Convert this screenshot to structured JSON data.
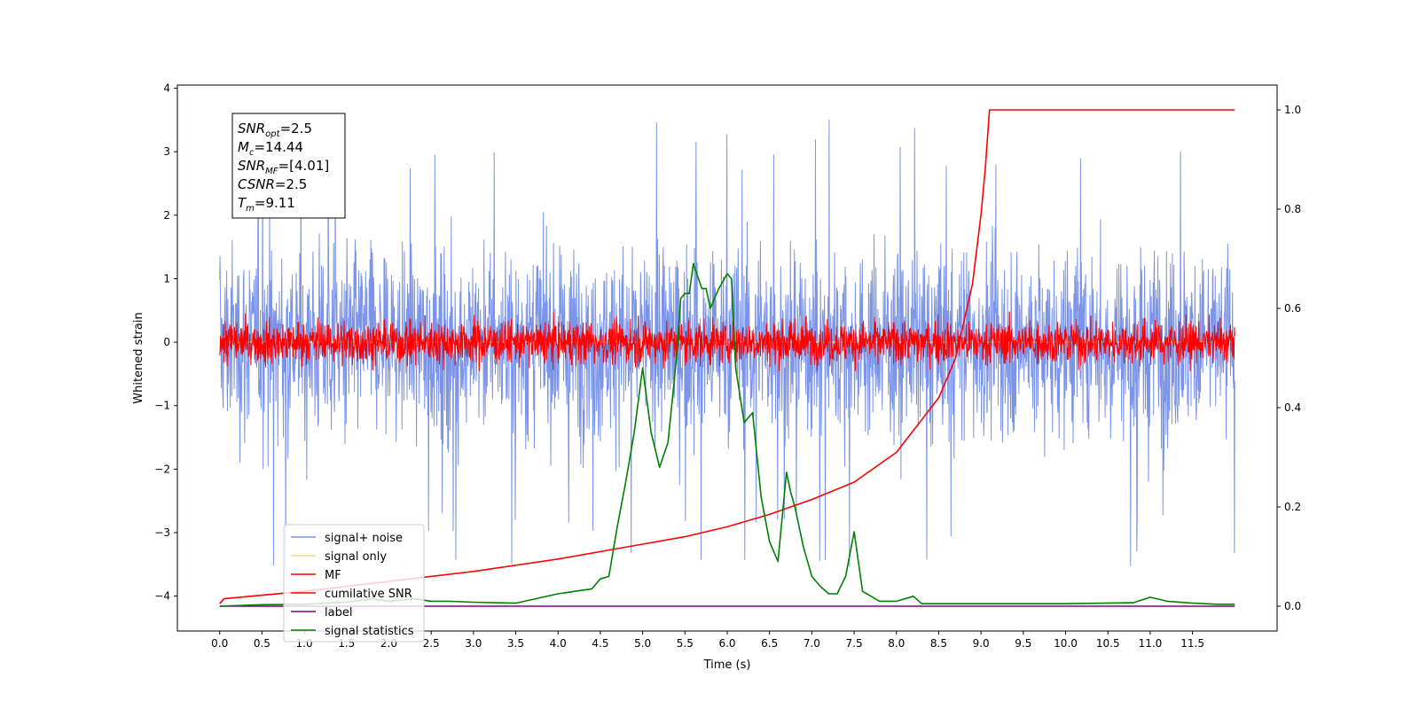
{
  "chart_data": {
    "type": "line",
    "xlabel": "Time (s)",
    "ylabel": "Whitened strain",
    "xlim": [
      -0.5,
      12.5
    ],
    "ylim": [
      -4.55,
      4.05
    ],
    "y2lim": [
      -0.05,
      1.05
    ],
    "grid": false,
    "legend_position": "lower-left",
    "x_ticks": [
      "0.0",
      "0.5",
      "1.0",
      "1.5",
      "2.0",
      "2.5",
      "3.0",
      "3.5",
      "4.0",
      "4.5",
      "5.0",
      "5.5",
      "6.0",
      "6.5",
      "7.0",
      "7.5",
      "8.0",
      "8.5",
      "9.0",
      "9.5",
      "10.0",
      "10.5",
      "11.0",
      "11.5"
    ],
    "y_ticks": [
      "4",
      "3",
      "2",
      "1",
      "0",
      "−1",
      "−2",
      "−3",
      "−4"
    ],
    "y2_ticks": [
      "1.0",
      "0.8",
      "0.6",
      "0.4",
      "0.2",
      "0.0"
    ],
    "annotation": {
      "lines": [
        {
          "base": "SNR",
          "sub": "opt",
          "value": "=2.5"
        },
        {
          "base": "M",
          "sub": "c",
          "value": "=14.44"
        },
        {
          "base": "SNR",
          "sub": "MF",
          "value": "=[4.01]"
        },
        {
          "base": "CSNR",
          "sub": "",
          "value": "=2.5"
        },
        {
          "base": "T",
          "sub": "m",
          "value": "=9.11"
        }
      ]
    },
    "legend": [
      {
        "label": "signal+ noise",
        "color": "#7b94e8"
      },
      {
        "label": "signal only",
        "color": "#ffd27f"
      },
      {
        "label": "MF",
        "color": "#ff0000"
      },
      {
        "label": "cumilative SNR",
        "color": "#ff0000"
      },
      {
        "label": "label",
        "color": "#800080"
      },
      {
        "label": "signal statistics",
        "color": "#008000"
      }
    ],
    "series": [
      {
        "name": "signal+ noise",
        "axis": "left",
        "color": "#7b94e8",
        "noise_amplitude": 1.35,
        "x_range": [
          0,
          12.0
        ]
      },
      {
        "name": "signal only",
        "axis": "left",
        "color": "#ffd27f",
        "x": [
          0,
          12.0
        ],
        "y": [
          0,
          0
        ]
      },
      {
        "name": "MF",
        "axis": "left",
        "color": "#ff0000",
        "noise_amplitude": 0.3,
        "x_range": [
          0,
          12.0
        ]
      },
      {
        "name": "cumilative SNR",
        "axis": "right",
        "color": "#ff0000",
        "x": [
          0.0,
          0.05,
          1.0,
          2.0,
          3.0,
          4.0,
          5.0,
          5.5,
          6.0,
          6.5,
          7.0,
          7.5,
          8.0,
          8.5,
          8.7,
          8.9,
          9.0,
          9.05,
          9.1,
          12.0
        ],
        "y": [
          0.005,
          0.015,
          0.03,
          0.05,
          0.07,
          0.095,
          0.125,
          0.14,
          0.16,
          0.185,
          0.215,
          0.25,
          0.31,
          0.42,
          0.5,
          0.65,
          0.79,
          0.88,
          1.0,
          1.0
        ]
      },
      {
        "name": "label",
        "axis": "right",
        "color": "#800080",
        "x": [
          0,
          12.0
        ],
        "y": [
          0,
          0
        ]
      },
      {
        "name": "signal statistics",
        "axis": "right",
        "color": "#008000",
        "x": [
          0.0,
          0.5,
          1.0,
          1.5,
          1.8,
          2.0,
          2.3,
          2.5,
          2.7,
          3.0,
          3.5,
          4.0,
          4.2,
          4.4,
          4.5,
          4.6,
          4.7,
          4.8,
          4.9,
          5.0,
          5.1,
          5.2,
          5.3,
          5.4,
          5.45,
          5.5,
          5.55,
          5.6,
          5.7,
          5.75,
          5.8,
          5.9,
          6.0,
          6.05,
          6.1,
          6.2,
          6.3,
          6.4,
          6.5,
          6.6,
          6.7,
          6.75,
          6.8,
          6.9,
          7.0,
          7.1,
          7.2,
          7.3,
          7.4,
          7.5,
          7.6,
          7.8,
          8.0,
          8.2,
          8.3,
          8.5,
          9.0,
          10.0,
          10.8,
          11.0,
          11.2,
          11.5,
          11.8,
          12.0
        ],
        "y": [
          0.0,
          0.003,
          0.004,
          0.008,
          0.015,
          0.01,
          0.015,
          0.01,
          0.01,
          0.008,
          0.006,
          0.025,
          0.03,
          0.035,
          0.055,
          0.06,
          0.16,
          0.25,
          0.35,
          0.48,
          0.35,
          0.28,
          0.33,
          0.5,
          0.62,
          0.63,
          0.63,
          0.69,
          0.64,
          0.64,
          0.6,
          0.64,
          0.67,
          0.66,
          0.48,
          0.37,
          0.39,
          0.22,
          0.13,
          0.09,
          0.27,
          0.23,
          0.2,
          0.12,
          0.06,
          0.04,
          0.025,
          0.025,
          0.06,
          0.15,
          0.03,
          0.01,
          0.01,
          0.02,
          0.005,
          0.005,
          0.005,
          0.005,
          0.007,
          0.018,
          0.01,
          0.006,
          0.004,
          0.004
        ]
      }
    ]
  }
}
